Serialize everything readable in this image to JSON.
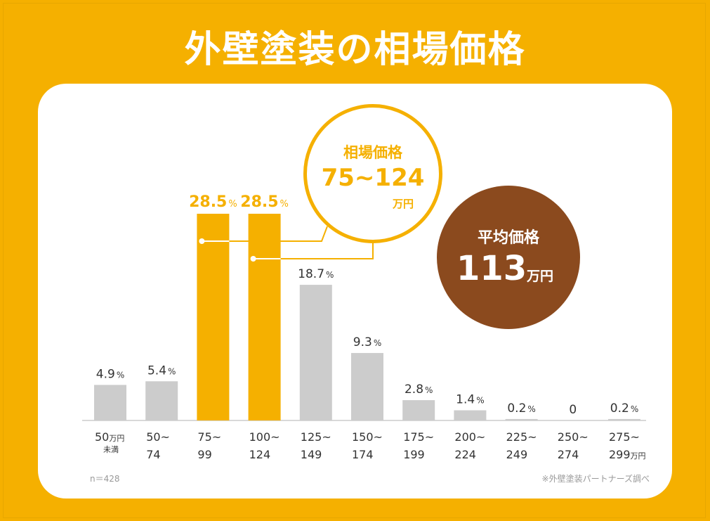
{
  "title": "外壁塗装の相場価格",
  "chart_data": {
    "type": "bar",
    "categories": [
      {
        "line1": "50",
        "unit": "万円",
        "sub": "未満"
      },
      {
        "line1": "50~",
        "line2": "74"
      },
      {
        "line1": "75~",
        "line2": "99"
      },
      {
        "line1": "100~",
        "line2": "124"
      },
      {
        "line1": "125~",
        "line2": "149"
      },
      {
        "line1": "150~",
        "line2": "174"
      },
      {
        "line1": "175~",
        "line2": "199"
      },
      {
        "line1": "200~",
        "line2": "224"
      },
      {
        "line1": "225~",
        "line2": "249"
      },
      {
        "line1": "250~",
        "line2": "274"
      },
      {
        "line1": "275~",
        "line2": "299",
        "unit": "万円"
      }
    ],
    "values": [
      4.9,
      5.4,
      28.5,
      28.5,
      18.7,
      9.3,
      2.8,
      1.4,
      0.2,
      0,
      0.2
    ],
    "value_labels": [
      "4.9",
      "5.4",
      "28.5",
      "28.5",
      "18.7",
      "9.3",
      "2.8",
      "1.4",
      "0.2",
      "0",
      "0.2"
    ],
    "percent_suffix": "%",
    "highlighted": [
      2,
      3
    ],
    "ylim": [
      0,
      30
    ],
    "colors": {
      "normal": "#cccccc",
      "highlight": "#f5b000",
      "label_normal": "#333333"
    }
  },
  "market_bubble": {
    "label": "相場価格",
    "range": "75~124",
    "unit": "万円"
  },
  "average_bubble": {
    "label": "平均価格",
    "value": "113",
    "unit": "万円"
  },
  "sample_note": "n＝428",
  "source_note": "※外壁塗装パートナーズ調べ",
  "colors": {
    "background": "#f5b000",
    "accent": "#f5b000",
    "brown": "#8b4a1e"
  }
}
